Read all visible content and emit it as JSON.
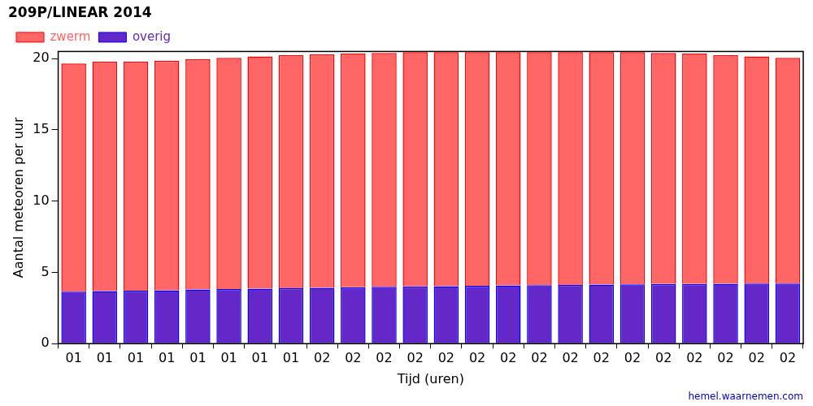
{
  "chart_data": {
    "type": "bar",
    "title": "209P/LINEAR 2014",
    "source": "hemel.waarnemen.com",
    "x_label": "Tijd (uren)",
    "y_label": "Aantal meteoren per uur",
    "categories": [
      "01",
      "01",
      "01",
      "01",
      "01",
      "01",
      "01",
      "01",
      "02",
      "02",
      "02",
      "02",
      "02",
      "02",
      "02",
      "02",
      "02",
      "02",
      "02",
      "02",
      "02",
      "02",
      "02",
      "02"
    ],
    "series": [
      {
        "name": "zwerm",
        "color": "#ff6666",
        "values": [
          16.0,
          16.12,
          16.08,
          16.1,
          16.15,
          16.22,
          16.29,
          16.36,
          16.38,
          16.4,
          16.42,
          16.44,
          16.42,
          16.39,
          16.37,
          16.35,
          16.33,
          16.31,
          16.29,
          16.22,
          16.16,
          16.05,
          15.94,
          15.83
        ]
      },
      {
        "name": "overig",
        "color": "#6428c8",
        "values": [
          3.65,
          3.68,
          3.72,
          3.75,
          3.8,
          3.83,
          3.86,
          3.89,
          3.92,
          3.95,
          3.98,
          4.01,
          4.03,
          4.06,
          4.08,
          4.1,
          4.12,
          4.14,
          4.16,
          4.18,
          4.19,
          4.2,
          4.21,
          4.22
        ]
      }
    ],
    "stacked": true,
    "ylim": [
      0,
      20.5
    ],
    "yticks": [
      0,
      5,
      10,
      15,
      20
    ],
    "grid": false,
    "legend": "upper left"
  }
}
